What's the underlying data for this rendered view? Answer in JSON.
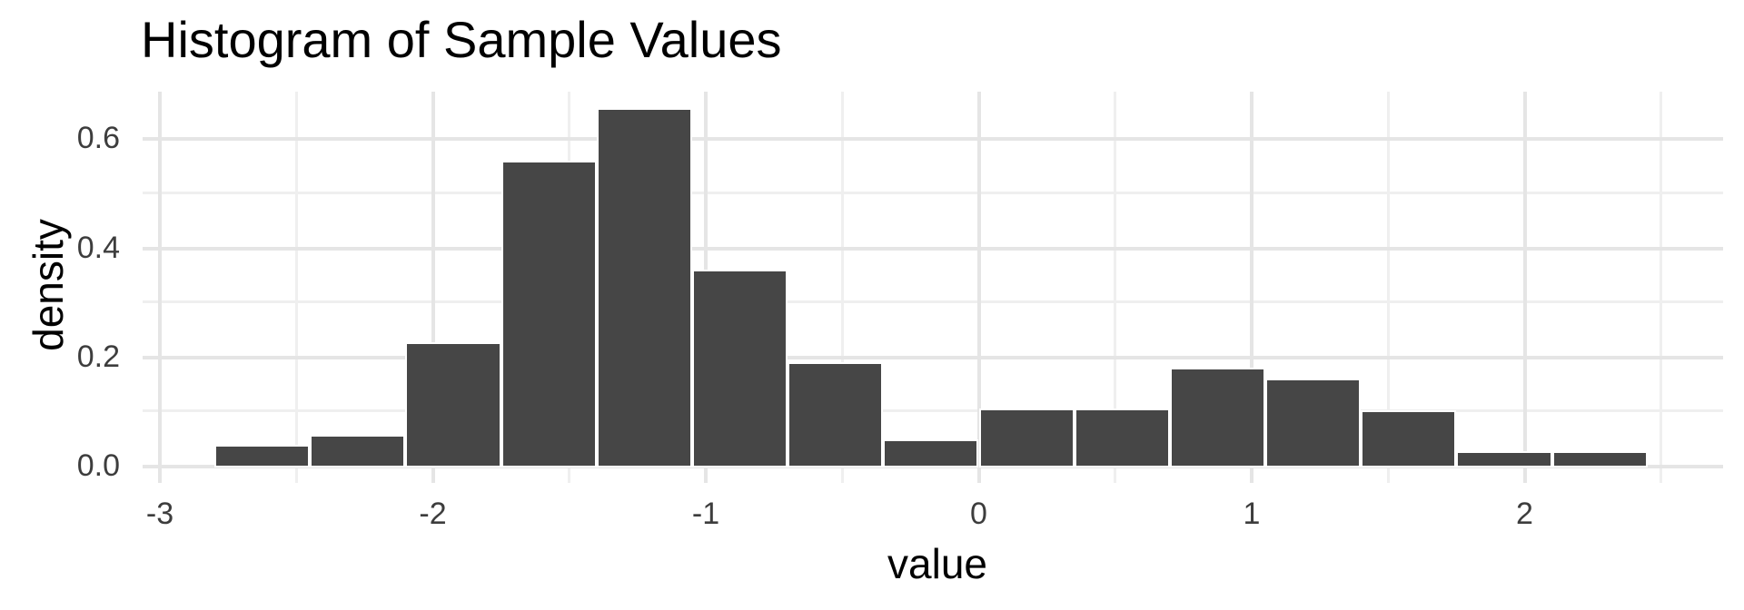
{
  "title": "Histogram of Sample Values",
  "chart_data": {
    "type": "histogram",
    "title": "Histogram of Sample Values",
    "xlabel": "value",
    "ylabel": "density",
    "bins": {
      "start": -2.8,
      "binwidth": 0.35,
      "count": 15
    },
    "bin_edges": [
      -2.8,
      -2.45,
      -2.1,
      -1.75,
      -1.4,
      -1.05,
      -0.7,
      -0.35,
      0.0,
      0.35,
      0.7,
      1.05,
      1.4,
      1.75,
      2.1,
      2.45
    ],
    "densities": [
      0.034,
      0.053,
      0.222,
      0.555,
      0.651,
      0.356,
      0.186,
      0.044,
      0.101,
      0.101,
      0.175,
      0.156,
      0.098,
      0.023,
      0.022
    ],
    "x_tick_values": [
      -3,
      -2,
      -1,
      0,
      1,
      2
    ],
    "x_tick_labels": [
      "-3",
      "-2",
      "-1",
      "0",
      "1",
      "2"
    ],
    "y_tick_values": [
      0.0,
      0.2,
      0.4,
      0.6
    ],
    "y_tick_labels": [
      "0.0",
      "0.2",
      "0.4",
      "0.6"
    ],
    "x_minor_values": [
      -2.5,
      -1.5,
      -0.5,
      0.5,
      1.5,
      2.5
    ],
    "y_minor_values": [
      0.1,
      0.3,
      0.5
    ],
    "xlim": [
      -3.05,
      2.73
    ],
    "ylim": [
      -0.033,
      0.683
    ],
    "grid": "major+minor",
    "legend_position": "none",
    "colors": {
      "bar_fill": "#464646",
      "bar_border": "#ffffff",
      "grid_major": "#e5e5e5",
      "grid_minor": "#efefef",
      "tick_text": "#3d3d3d",
      "title_text": "#000000",
      "background": "#ffffff"
    }
  }
}
